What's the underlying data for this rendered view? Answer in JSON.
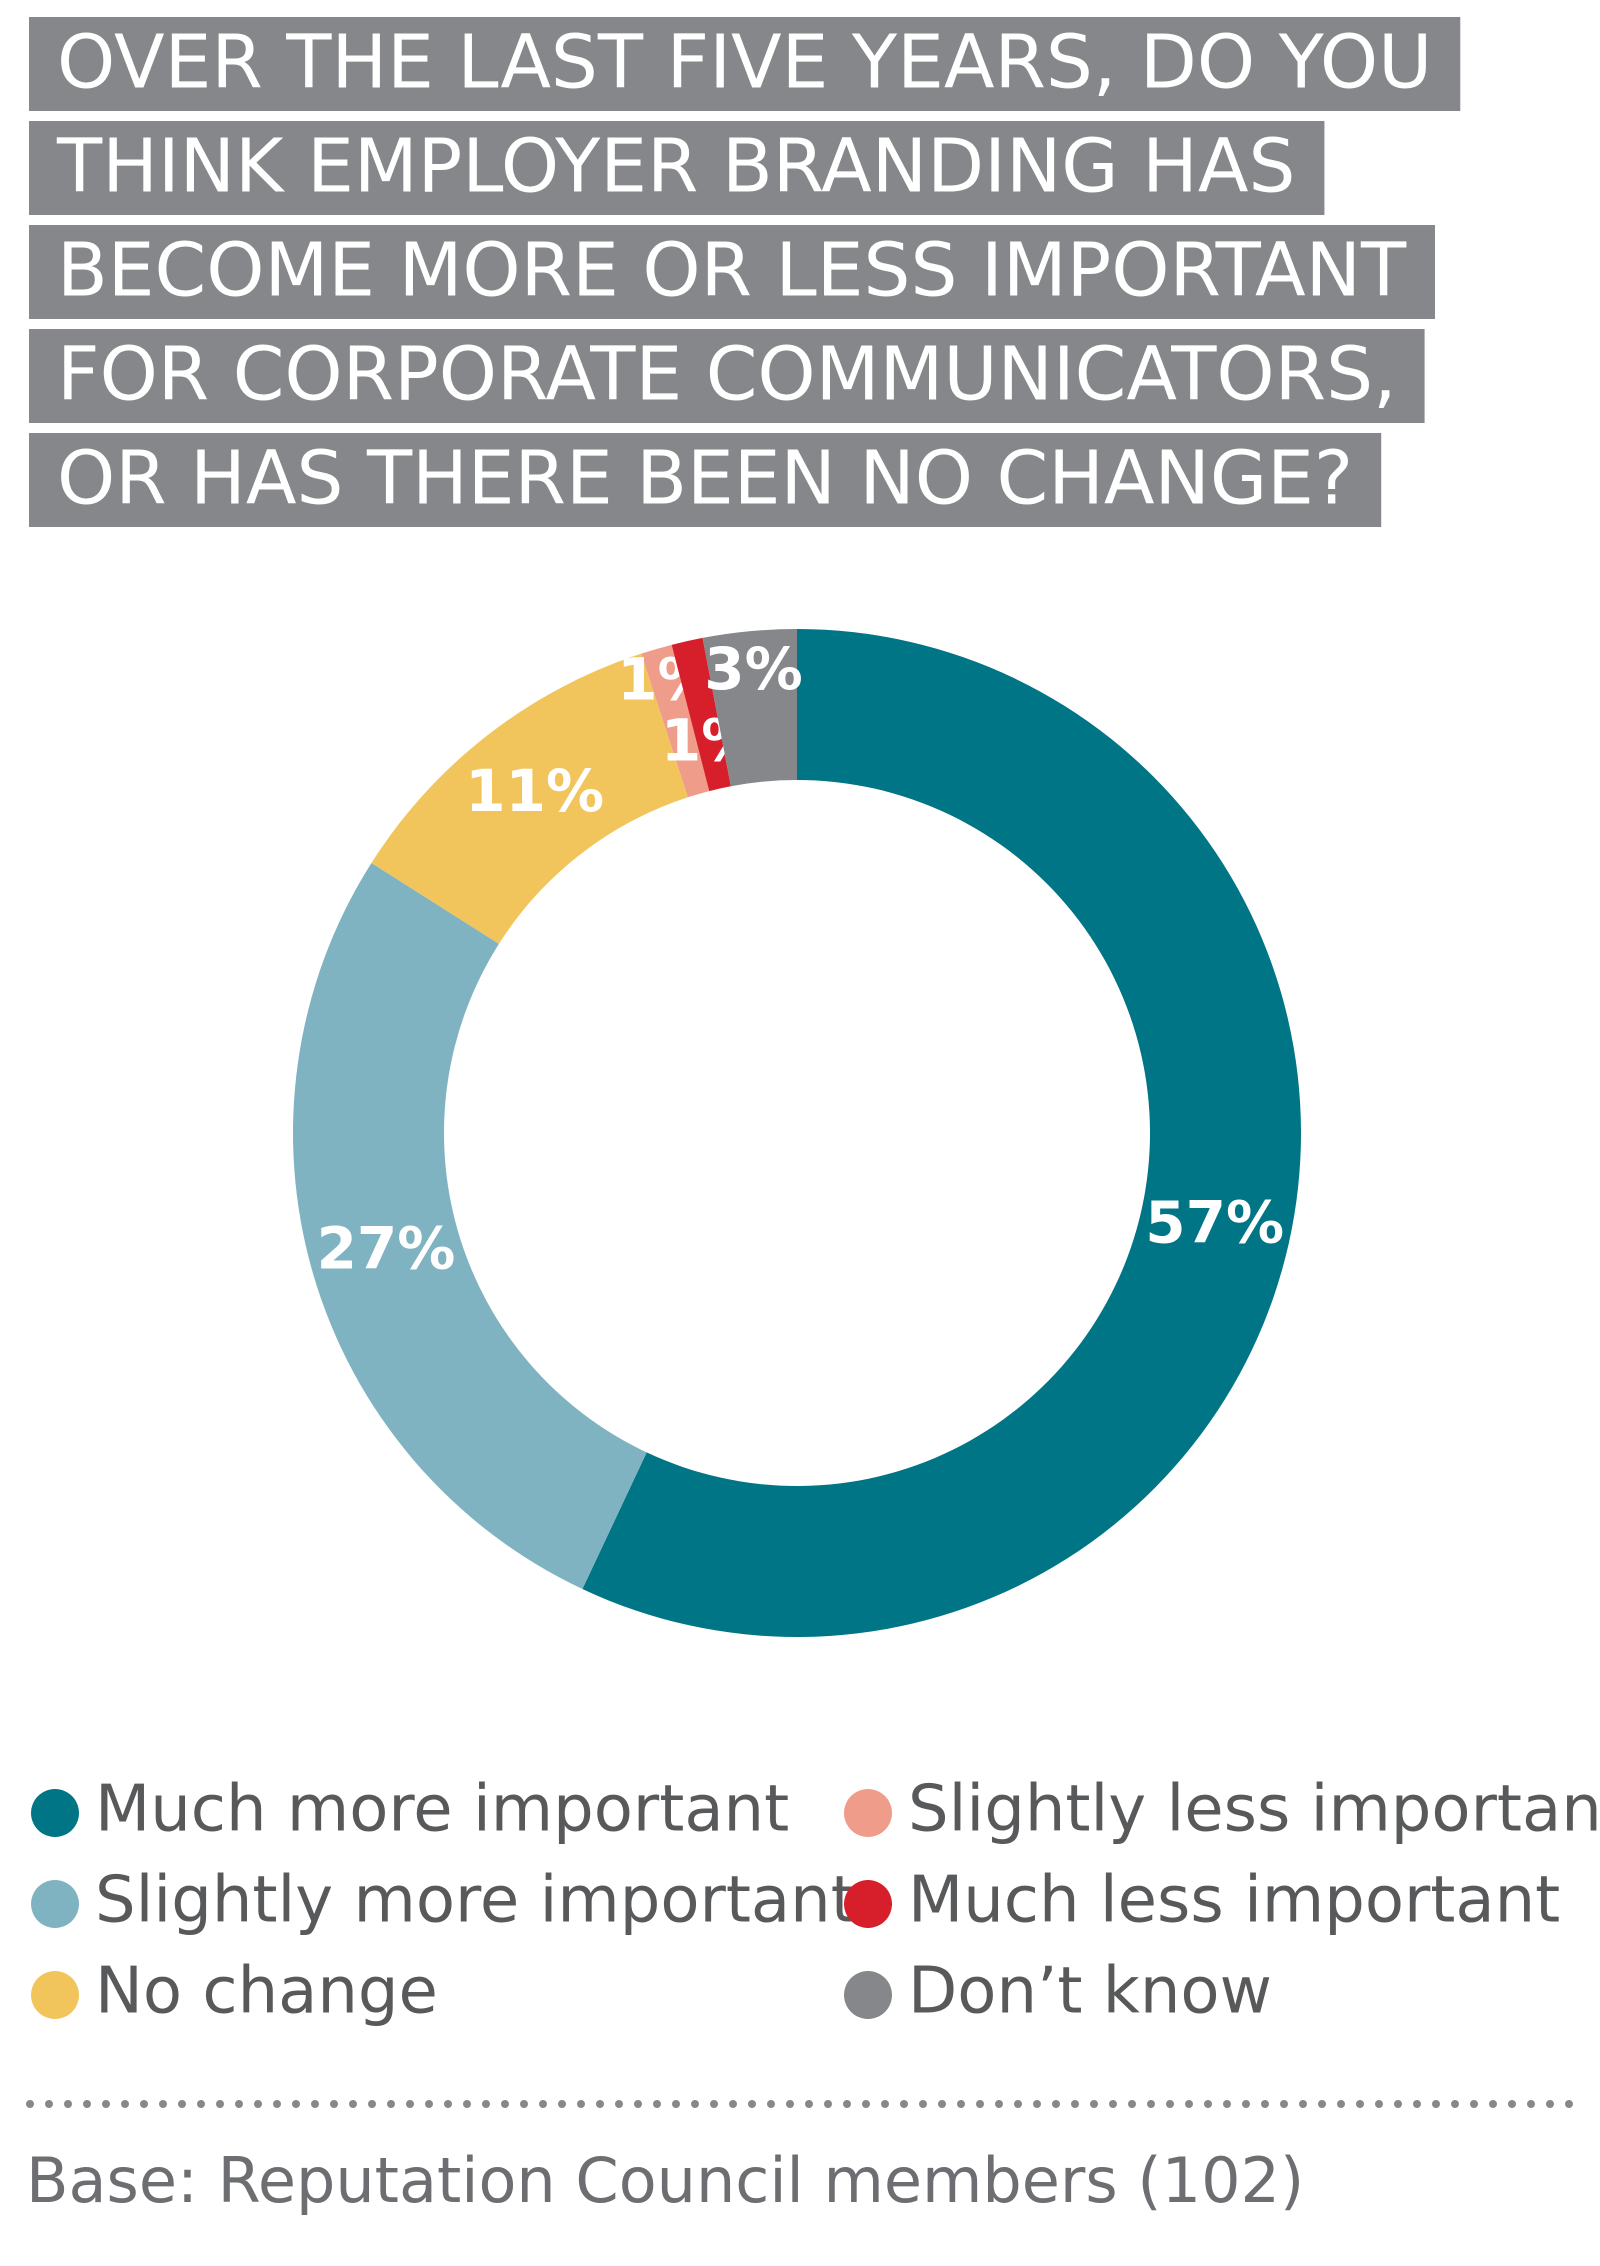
{
  "chart_data": {
    "type": "donut",
    "title_lines": [
      "OVER THE LAST FIVE YEARS, DO YOU",
      "THINK EMPLOYER BRANDING HAS",
      "BECOME MORE OR LESS IMPORTANT",
      "FOR CORPORATE COMMUNICATORS,",
      "OR HAS THERE BEEN NO CHANGE?"
    ],
    "categories": [
      "Much more important",
      "Slightly more important",
      "No change",
      "Slightly less important",
      "Much less important",
      "Don’t know"
    ],
    "values": [
      57,
      27,
      11,
      1,
      1,
      3
    ],
    "value_labels": [
      "57%",
      "27%",
      "11%",
      "1%",
      "1%",
      "3%"
    ],
    "colors": [
      "#007585",
      "#80b3c1",
      "#f2c55c",
      "#ef9c8a",
      "#d71f2b",
      "#85878a"
    ],
    "footnote": "Base: Reputation Council members (102)"
  }
}
